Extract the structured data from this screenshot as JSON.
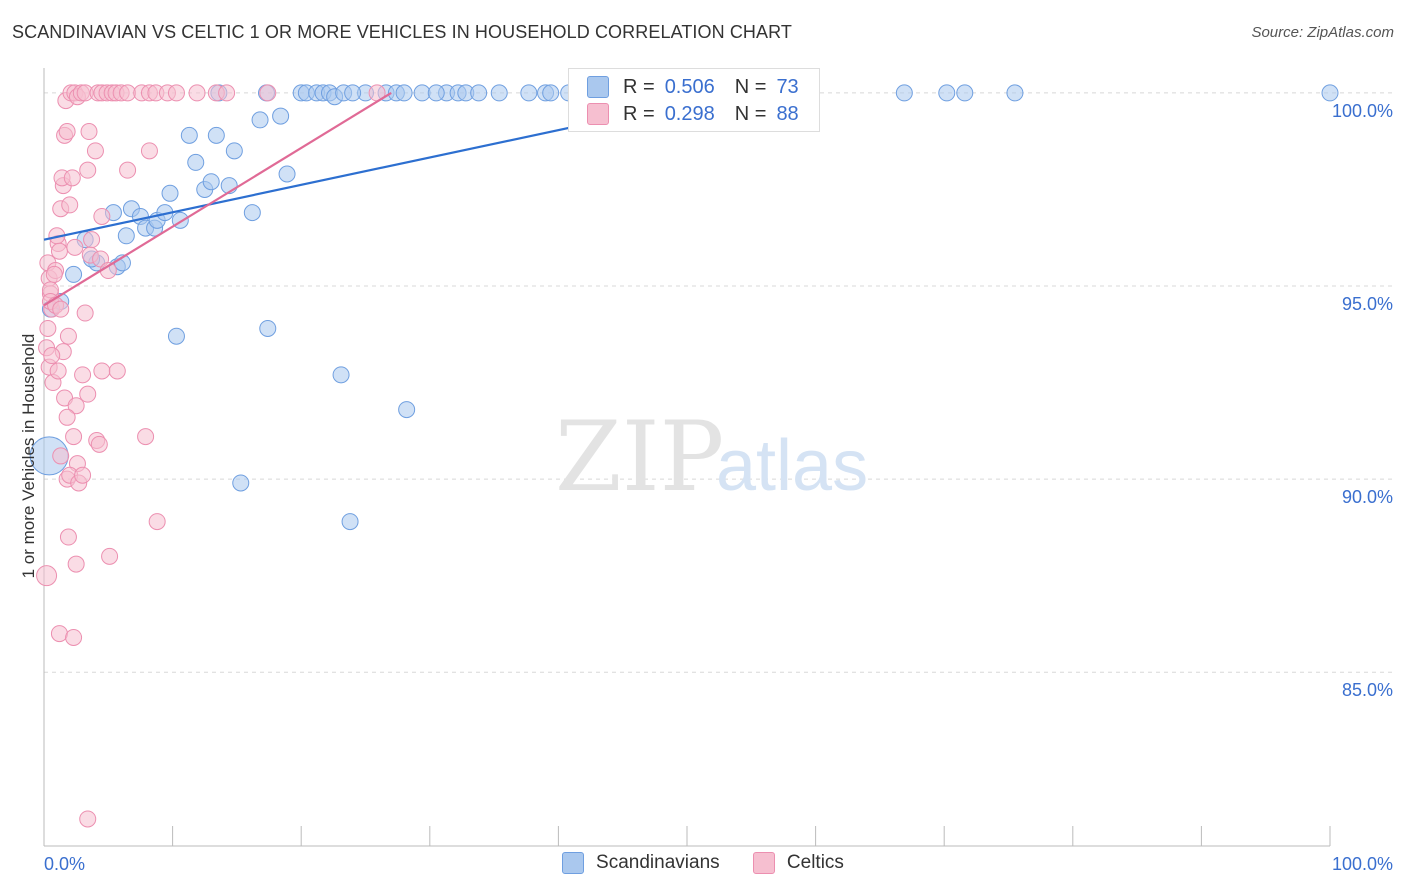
{
  "header": {
    "title": "SCANDINAVIAN VS CELTIC 1 OR MORE VEHICLES IN HOUSEHOLD CORRELATION CHART",
    "source": "Source: ZipAtlas.com"
  },
  "watermark": {
    "zip": "ZIP",
    "atlas": "atlas"
  },
  "stats": {
    "rows": [
      {
        "r_label": "R =",
        "r_value": "0.506",
        "n_label": "N =",
        "n_value": "73"
      },
      {
        "r_label": "R =",
        "r_value": "0.298",
        "n_label": "N =",
        "n_value": "88"
      }
    ]
  },
  "legend": {
    "items": [
      "Scandinavians",
      "Celtics"
    ]
  },
  "colors": {
    "blue_fill": "#aac8ee",
    "blue_stroke": "#6f9fe0",
    "blue_line": "#2d6fd0",
    "pink_fill": "#f6bfd0",
    "pink_stroke": "#ec8fb0",
    "pink_line": "#e06a96",
    "grid": "#d8d8d8",
    "tick_label": "#3a6fcf",
    "axis": "#bbbbbb"
  },
  "chart_data": {
    "type": "scatter",
    "title": "SCANDINAVIAN VS CELTIC 1 OR MORE VEHICLES IN HOUSEHOLD CORRELATION CHART",
    "xlabel": "",
    "ylabel": "1 or more Vehicles in Household",
    "xlim": [
      0,
      100
    ],
    "ylim": [
      80.5,
      100.8
    ],
    "x_tick_labels": [
      {
        "value": 0,
        "label": "0.0%"
      },
      {
        "value": 100,
        "label": "100.0%"
      }
    ],
    "y_ticks": [
      {
        "value": 85,
        "label": "85.0%"
      },
      {
        "value": 90,
        "label": "90.0%"
      },
      {
        "value": 95,
        "label": "95.0%"
      },
      {
        "value": 100,
        "label": "100.0%"
      }
    ],
    "grid": true,
    "legend_position": "bottom-center",
    "series": [
      {
        "name": "Scandinavians",
        "color": "#aac8ee",
        "R": 0.506,
        "N": 73,
        "trend": {
          "x": [
            0,
            55
          ],
          "y": [
            96.2,
            100.1
          ]
        },
        "points": [
          [
            0.5,
            94.4,
            8
          ],
          [
            1.3,
            94.6,
            8
          ],
          [
            2.3,
            95.3,
            8
          ],
          [
            3.2,
            96.2,
            8
          ],
          [
            4.1,
            95.6,
            8
          ],
          [
            3.7,
            95.7,
            8
          ],
          [
            5.7,
            95.5,
            8
          ],
          [
            6.1,
            95.6,
            8
          ],
          [
            5.4,
            96.9,
            8
          ],
          [
            6.4,
            96.3,
            8
          ],
          [
            6.8,
            97.0,
            8
          ],
          [
            7.5,
            96.8,
            8
          ],
          [
            7.9,
            96.5,
            8
          ],
          [
            8.6,
            96.5,
            8
          ],
          [
            8.8,
            96.7,
            8
          ],
          [
            9.4,
            96.9,
            8
          ],
          [
            9.8,
            97.4,
            8
          ],
          [
            10.6,
            96.7,
            8
          ],
          [
            11.3,
            98.9,
            8
          ],
          [
            11.8,
            98.2,
            8
          ],
          [
            12.5,
            97.5,
            8
          ],
          [
            13.0,
            97.7,
            8
          ],
          [
            13.4,
            98.9,
            8
          ],
          [
            14.4,
            97.6,
            8
          ],
          [
            14.8,
            98.5,
            8
          ],
          [
            16.2,
            96.9,
            8
          ],
          [
            16.8,
            99.3,
            8
          ],
          [
            18.4,
            99.4,
            8
          ],
          [
            18.9,
            97.9,
            8
          ],
          [
            17.3,
            100.0,
            8
          ],
          [
            13.6,
            100.0,
            8
          ],
          [
            20.0,
            100.0,
            8
          ],
          [
            20.4,
            100.0,
            8
          ],
          [
            21.2,
            100.0,
            8
          ],
          [
            21.7,
            100.0,
            8
          ],
          [
            22.2,
            100.0,
            8
          ],
          [
            22.6,
            99.9,
            8
          ],
          [
            23.3,
            100.0,
            8
          ],
          [
            25.0,
            100.0,
            8
          ],
          [
            26.6,
            100.0,
            8
          ],
          [
            27.4,
            100.0,
            8
          ],
          [
            28.0,
            100.0,
            8
          ],
          [
            29.4,
            100.0,
            8
          ],
          [
            31.3,
            100.0,
            8
          ],
          [
            32.2,
            100.0,
            8
          ],
          [
            32.8,
            100.0,
            8
          ],
          [
            33.8,
            100.0,
            8
          ],
          [
            35.4,
            100.0,
            8
          ],
          [
            37.7,
            100.0,
            8
          ],
          [
            39.0,
            100.0,
            8
          ],
          [
            39.4,
            100.0,
            8
          ],
          [
            40.8,
            100.0,
            8
          ],
          [
            42.8,
            100.0,
            8
          ],
          [
            44.0,
            100.0,
            8
          ],
          [
            48.6,
            100.0,
            8
          ],
          [
            50.0,
            100.0,
            8
          ],
          [
            52.6,
            100.0,
            8
          ],
          [
            55.0,
            100.0,
            8
          ],
          [
            66.9,
            100.0,
            8
          ],
          [
            70.2,
            100.0,
            8
          ],
          [
            71.6,
            100.0,
            8
          ],
          [
            75.5,
            100.0,
            8
          ],
          [
            100.0,
            100.0,
            8
          ],
          [
            52.0,
            100.0,
            8
          ],
          [
            10.3,
            93.7,
            8
          ],
          [
            17.4,
            93.9,
            8
          ],
          [
            23.1,
            92.7,
            8
          ],
          [
            28.2,
            91.8,
            8
          ],
          [
            15.3,
            89.9,
            8
          ],
          [
            23.8,
            88.9,
            8
          ],
          [
            0.4,
            90.6,
            19
          ],
          [
            24.0,
            100.0,
            8
          ],
          [
            30.5,
            100.0,
            8
          ]
        ]
      },
      {
        "name": "Celtics",
        "color": "#f6bfd0",
        "R": 0.298,
        "N": 88,
        "trend": {
          "x": [
            0,
            27
          ],
          "y": [
            94.5,
            100.0
          ]
        },
        "points": [
          [
            0.3,
            95.6,
            8
          ],
          [
            0.4,
            95.2,
            8
          ],
          [
            0.5,
            94.8,
            8
          ],
          [
            0.6,
            94.4,
            8
          ],
          [
            0.3,
            93.9,
            8
          ],
          [
            0.2,
            93.4,
            8
          ],
          [
            0.4,
            92.9,
            8
          ],
          [
            0.7,
            92.5,
            8
          ],
          [
            0.5,
            94.9,
            8
          ],
          [
            0.9,
            95.4,
            8
          ],
          [
            1.1,
            96.1,
            8
          ],
          [
            1.0,
            96.3,
            8
          ],
          [
            1.2,
            95.9,
            8
          ],
          [
            1.3,
            97.0,
            8
          ],
          [
            1.5,
            97.6,
            8
          ],
          [
            1.4,
            97.8,
            8
          ],
          [
            1.6,
            98.9,
            8
          ],
          [
            1.8,
            99.0,
            8
          ],
          [
            2.0,
            97.1,
            8
          ],
          [
            2.2,
            97.8,
            8
          ],
          [
            1.7,
            99.8,
            8
          ],
          [
            2.1,
            100.0,
            8
          ],
          [
            2.4,
            100.0,
            8
          ],
          [
            2.6,
            99.9,
            8
          ],
          [
            2.9,
            100.0,
            8
          ],
          [
            3.2,
            100.0,
            8
          ],
          [
            3.5,
            99.0,
            8
          ],
          [
            3.4,
            98.0,
            8
          ],
          [
            3.7,
            96.2,
            8
          ],
          [
            3.6,
            95.8,
            8
          ],
          [
            4.0,
            98.5,
            8
          ],
          [
            4.2,
            100.0,
            8
          ],
          [
            4.5,
            100.0,
            8
          ],
          [
            4.9,
            100.0,
            8
          ],
          [
            5.3,
            100.0,
            8
          ],
          [
            5.6,
            100.0,
            8
          ],
          [
            6.0,
            100.0,
            8
          ],
          [
            6.5,
            100.0,
            8
          ],
          [
            7.6,
            100.0,
            8
          ],
          [
            8.2,
            100.0,
            8
          ],
          [
            8.7,
            100.0,
            8
          ],
          [
            9.6,
            100.0,
            8
          ],
          [
            10.3,
            100.0,
            8
          ],
          [
            11.9,
            100.0,
            8
          ],
          [
            13.4,
            100.0,
            8
          ],
          [
            14.2,
            100.0,
            8
          ],
          [
            17.4,
            100.0,
            8
          ],
          [
            25.9,
            100.0,
            8
          ],
          [
            6.5,
            98.0,
            8
          ],
          [
            8.2,
            98.5,
            8
          ],
          [
            4.5,
            96.8,
            8
          ],
          [
            4.4,
            95.7,
            8
          ],
          [
            3.2,
            94.3,
            8
          ],
          [
            1.9,
            93.7,
            8
          ],
          [
            1.5,
            93.3,
            8
          ],
          [
            3.0,
            92.7,
            8
          ],
          [
            3.4,
            92.2,
            8
          ],
          [
            1.6,
            92.1,
            8
          ],
          [
            2.5,
            91.9,
            8
          ],
          [
            1.8,
            91.6,
            8
          ],
          [
            4.5,
            92.8,
            8
          ],
          [
            5.7,
            92.8,
            8
          ],
          [
            2.3,
            91.1,
            8
          ],
          [
            4.1,
            91.0,
            8
          ],
          [
            4.3,
            90.9,
            8
          ],
          [
            7.9,
            91.1,
            8
          ],
          [
            1.3,
            90.6,
            8
          ],
          [
            2.6,
            90.4,
            8
          ],
          [
            1.8,
            90.0,
            8
          ],
          [
            2.0,
            90.1,
            8
          ],
          [
            2.7,
            89.9,
            8
          ],
          [
            3.0,
            90.1,
            8
          ],
          [
            8.8,
            88.9,
            8
          ],
          [
            1.9,
            88.5,
            8
          ],
          [
            2.5,
            87.8,
            8
          ],
          [
            5.1,
            88.0,
            8
          ],
          [
            0.2,
            87.5,
            10
          ],
          [
            1.2,
            86.0,
            8
          ],
          [
            2.3,
            85.9,
            8
          ],
          [
            3.4,
            81.2,
            8
          ],
          [
            0.5,
            94.6,
            8
          ],
          [
            0.9,
            94.5,
            8
          ],
          [
            1.3,
            94.4,
            8
          ],
          [
            0.6,
            93.2,
            8
          ],
          [
            1.1,
            92.8,
            8
          ],
          [
            0.8,
            95.3,
            8
          ],
          [
            2.4,
            96.0,
            8
          ],
          [
            5.0,
            95.4,
            8
          ]
        ]
      }
    ]
  }
}
